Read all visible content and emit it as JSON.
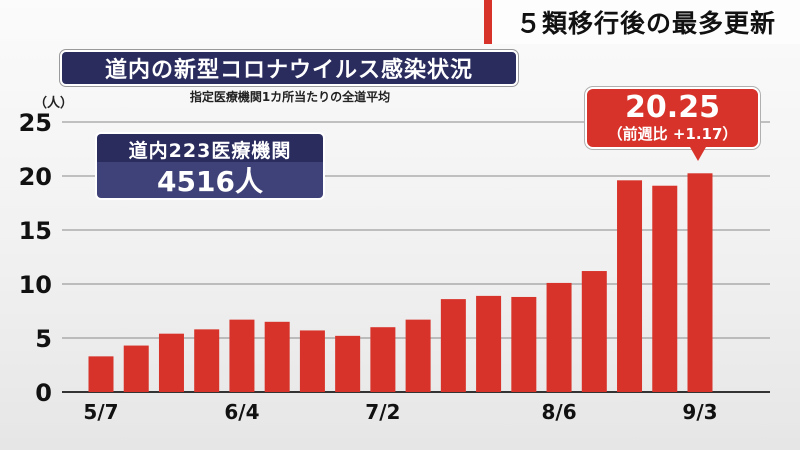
{
  "headline": "５類移行後の最多更新",
  "title": "道内の新型コロナウイルス感染状況",
  "subtitle": "指定医療機関1カ所当たりの全道平均",
  "unit": "（人）",
  "panel": {
    "label": "道内223医療機関",
    "value": "4516人"
  },
  "callout": {
    "value": "20.25",
    "sub": "（前週比 +1.17）"
  },
  "colors": {
    "bar": "#d7332a",
    "navy": "#2a2c5e",
    "accent": "#d7332a"
  },
  "chart_data": {
    "type": "bar",
    "categories": [
      "5/7",
      "",
      "",
      "",
      "6/4",
      "",
      "",
      "",
      "7/2",
      "",
      "",
      "",
      "",
      "8/6",
      "",
      "",
      "",
      "9/3"
    ],
    "values": [
      3.3,
      4.3,
      5.4,
      5.8,
      6.7,
      6.5,
      5.7,
      5.2,
      6.0,
      6.7,
      8.6,
      8.9,
      8.8,
      10.1,
      11.2,
      19.6,
      19.1,
      20.25
    ],
    "yticks": [
      0,
      5,
      10,
      15,
      20,
      25
    ],
    "ylim": [
      0,
      25
    ],
    "grid": true
  }
}
